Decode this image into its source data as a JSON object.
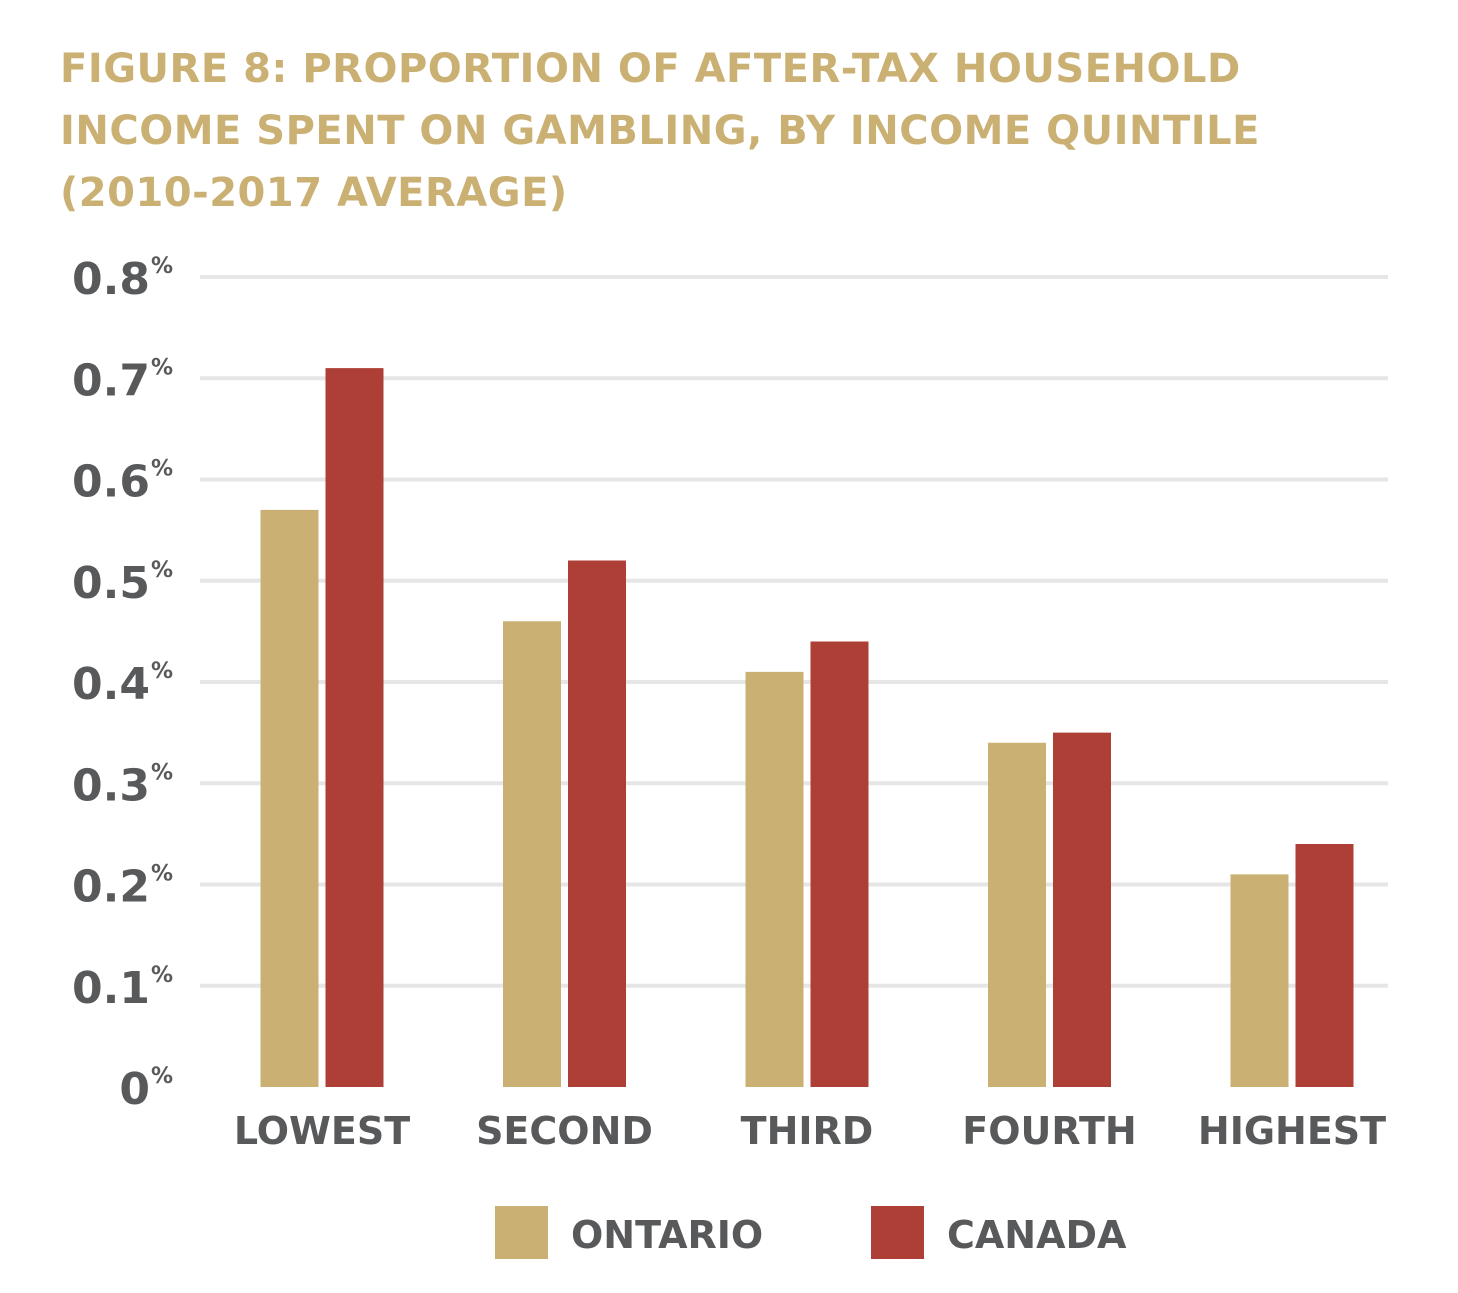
{
  "chart_data": {
    "type": "bar",
    "title_lines": [
      "FIGURE 8: PROPORTION OF AFTER-TAX HOUSEHOLD",
      "INCOME SPENT ON GAMBLING, BY INCOME QUINTILE",
      "(2010-2017 AVERAGE)"
    ],
    "xlabel": "",
    "ylabel": "",
    "categories": [
      "LOWEST",
      "SECOND",
      "THIRD",
      "FOURTH",
      "HIGHEST"
    ],
    "series": [
      {
        "name": "ONTARIO",
        "color": "#cbb074",
        "values": [
          0.57,
          0.46,
          0.41,
          0.34,
          0.21
        ]
      },
      {
        "name": "CANADA",
        "color": "#ae3f36",
        "values": [
          0.71,
          0.52,
          0.44,
          0.35,
          0.24
        ]
      }
    ],
    "ylim": [
      0,
      0.8
    ],
    "yticks": [
      0,
      0.1,
      0.2,
      0.3,
      0.4,
      0.5,
      0.6,
      0.7,
      0.8
    ],
    "ytick_labels": [
      "0",
      "0.1",
      "0.2",
      "0.3",
      "0.4",
      "0.5",
      "0.6",
      "0.7",
      "0.8"
    ],
    "ytick_suffix": "%",
    "grid": true,
    "legend_position": "bottom-center",
    "unit": "percent of after-tax household income"
  }
}
